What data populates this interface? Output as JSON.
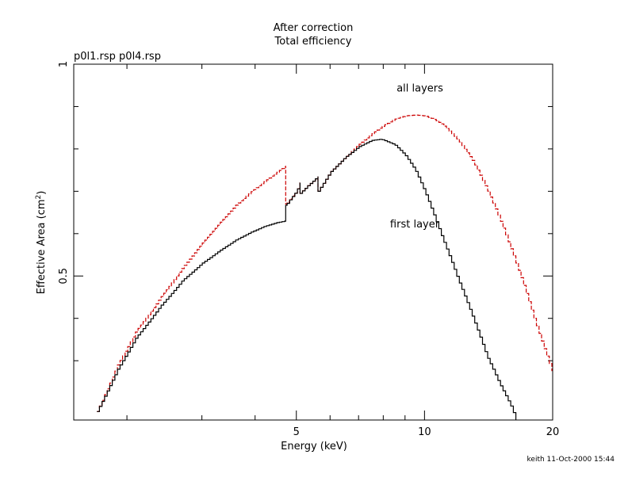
{
  "chart_data": {
    "type": "line",
    "title": "After correction",
    "subtitle": "Total efficiency",
    "file_label": "p0l1.rsp p0l4.rsp",
    "xlabel": "Energy (keV)",
    "ylabel_main": "Effective Area (cm",
    "ylabel_sup": "2",
    "ylabel_close": ")",
    "footer": "keith 11-Oct-2000 15:44",
    "xscale": "log",
    "xlim": [
      1.5,
      20
    ],
    "ylim": [
      0.16,
      1.0
    ],
    "x_major_ticks": [
      {
        "value": 5,
        "label": "5"
      },
      {
        "value": 10,
        "label": "10"
      },
      {
        "value": 20,
        "label": "20"
      }
    ],
    "x_minor_ticks": [
      2,
      3,
      4,
      6,
      7,
      8,
      9
    ],
    "y_major_ticks": [
      {
        "value": 0.5,
        "label": "0.5"
      },
      {
        "value": 1.0,
        "label": "1"
      }
    ],
    "y_minor_ticks": [
      0.3,
      0.4,
      0.6,
      0.7,
      0.8,
      0.9
    ],
    "series": [
      {
        "name": "all layers",
        "color": "#cc0000",
        "style": "dashed",
        "label_at": [
          8.6,
          0.935
        ],
        "x": [
          1.7,
          1.9,
          2.1,
          2.4,
          2.7,
          3.0,
          3.3,
          3.6,
          3.9,
          4.2,
          4.5,
          4.72,
          4.72,
          4.85,
          5.0,
          5.1,
          5.1,
          5.3,
          5.55,
          5.62,
          5.62,
          6.0,
          6.5,
          7.0,
          7.5,
          8.0,
          8.5,
          9.0,
          9.5,
          10.0,
          10.5,
          11.0,
          12.0,
          13.0,
          14.0,
          15.0,
          16.0,
          17.0,
          18.0,
          19.0,
          20.0
        ],
        "y": [
          0.18,
          0.29,
          0.37,
          0.45,
          0.52,
          0.577,
          0.625,
          0.667,
          0.698,
          0.723,
          0.745,
          0.76,
          0.67,
          0.685,
          0.7,
          0.72,
          0.695,
          0.712,
          0.73,
          0.735,
          0.7,
          0.745,
          0.78,
          0.81,
          0.835,
          0.855,
          0.87,
          0.878,
          0.88,
          0.878,
          0.87,
          0.858,
          0.82,
          0.77,
          0.705,
          0.635,
          0.56,
          0.485,
          0.405,
          0.335,
          0.27
        ]
      },
      {
        "name": "first layer",
        "color": "#000000",
        "style": "solid",
        "label_at": [
          8.3,
          0.615
        ],
        "x": [
          1.7,
          1.9,
          2.1,
          2.4,
          2.7,
          3.0,
          3.3,
          3.6,
          3.9,
          4.2,
          4.5,
          4.72,
          4.72,
          4.85,
          5.0,
          5.1,
          5.1,
          5.3,
          5.55,
          5.62,
          5.62,
          6.0,
          6.5,
          7.0,
          7.5,
          7.9,
          8.5,
          9.0,
          9.5,
          10.0,
          10.5,
          11.0,
          11.5,
          12.0,
          13.0,
          14.0,
          15.0,
          16.0,
          16.4
        ],
        "y": [
          0.18,
          0.28,
          0.355,
          0.43,
          0.49,
          0.53,
          0.56,
          0.585,
          0.603,
          0.617,
          0.626,
          0.63,
          0.667,
          0.683,
          0.7,
          0.72,
          0.695,
          0.712,
          0.73,
          0.735,
          0.7,
          0.745,
          0.78,
          0.805,
          0.82,
          0.823,
          0.81,
          0.785,
          0.75,
          0.7,
          0.645,
          0.59,
          0.54,
          0.49,
          0.4,
          0.31,
          0.245,
          0.19,
          0.16
        ]
      }
    ]
  }
}
